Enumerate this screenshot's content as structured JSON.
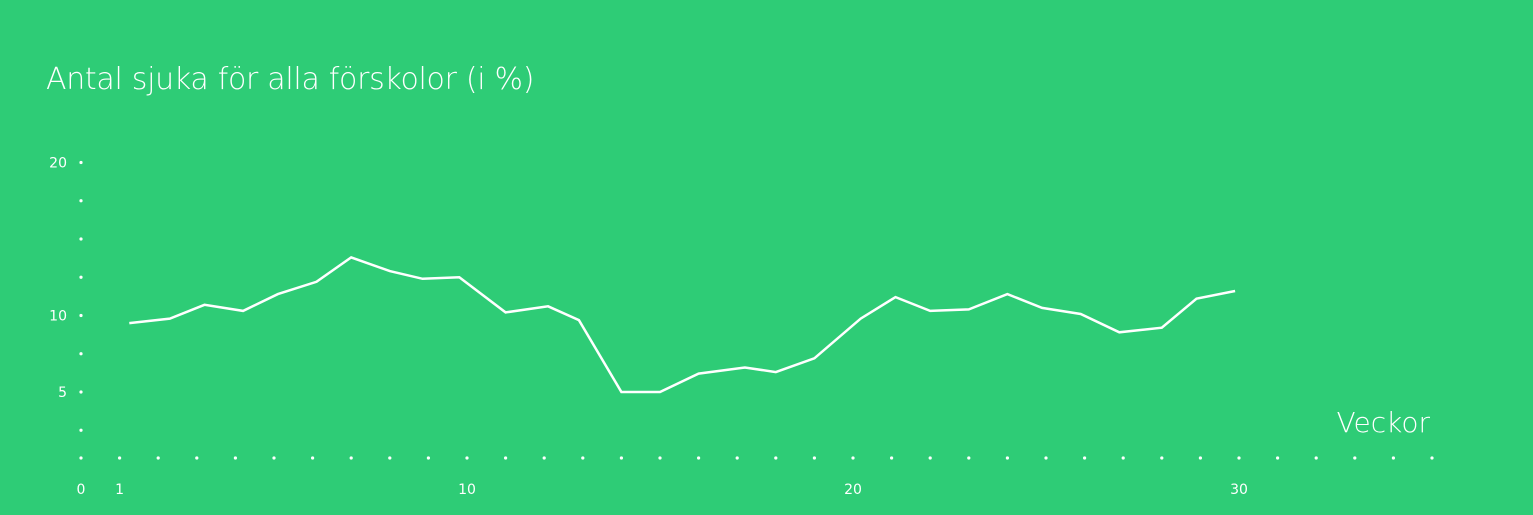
{
  "colors": {
    "background": "#2ecc76",
    "line": "#ffffff",
    "dots": "#ffffff"
  },
  "chart_data": {
    "type": "line",
    "title": "Antal sjuka för alla förskolor (i %)",
    "xlabel": "Veckor",
    "ylabel": "",
    "x_ticks": [
      "0",
      "1",
      "10",
      "20",
      "30"
    ],
    "y_ticks": [
      "5",
      "10",
      "20"
    ],
    "xlim": [
      0,
      35
    ],
    "ylim": [
      2,
      20
    ],
    "grid": false,
    "series": [
      {
        "x": [
          1.25,
          2.3,
          3.2,
          4.2,
          5.1,
          6.1,
          7.0,
          8.0,
          8.85,
          9.8,
          11.0,
          12.1,
          12.9,
          14.0,
          15.0,
          16.0,
          17.2,
          18.0,
          19.0,
          20.2,
          21.1,
          22.0,
          23.0,
          24.0,
          24.9,
          25.9,
          26.9,
          28.0,
          28.9,
          29.9
        ],
        "y": [
          9.5,
          9.8,
          10.7,
          10.3,
          11.4,
          12.2,
          13.8,
          12.9,
          12.4,
          12.5,
          10.2,
          10.6,
          9.7,
          5.0,
          5.0,
          6.2,
          6.6,
          6.3,
          7.2,
          9.8,
          11.2,
          10.3,
          10.4,
          11.4,
          10.5,
          10.1,
          8.9,
          9.2,
          11.1,
          11.6
        ]
      }
    ]
  }
}
